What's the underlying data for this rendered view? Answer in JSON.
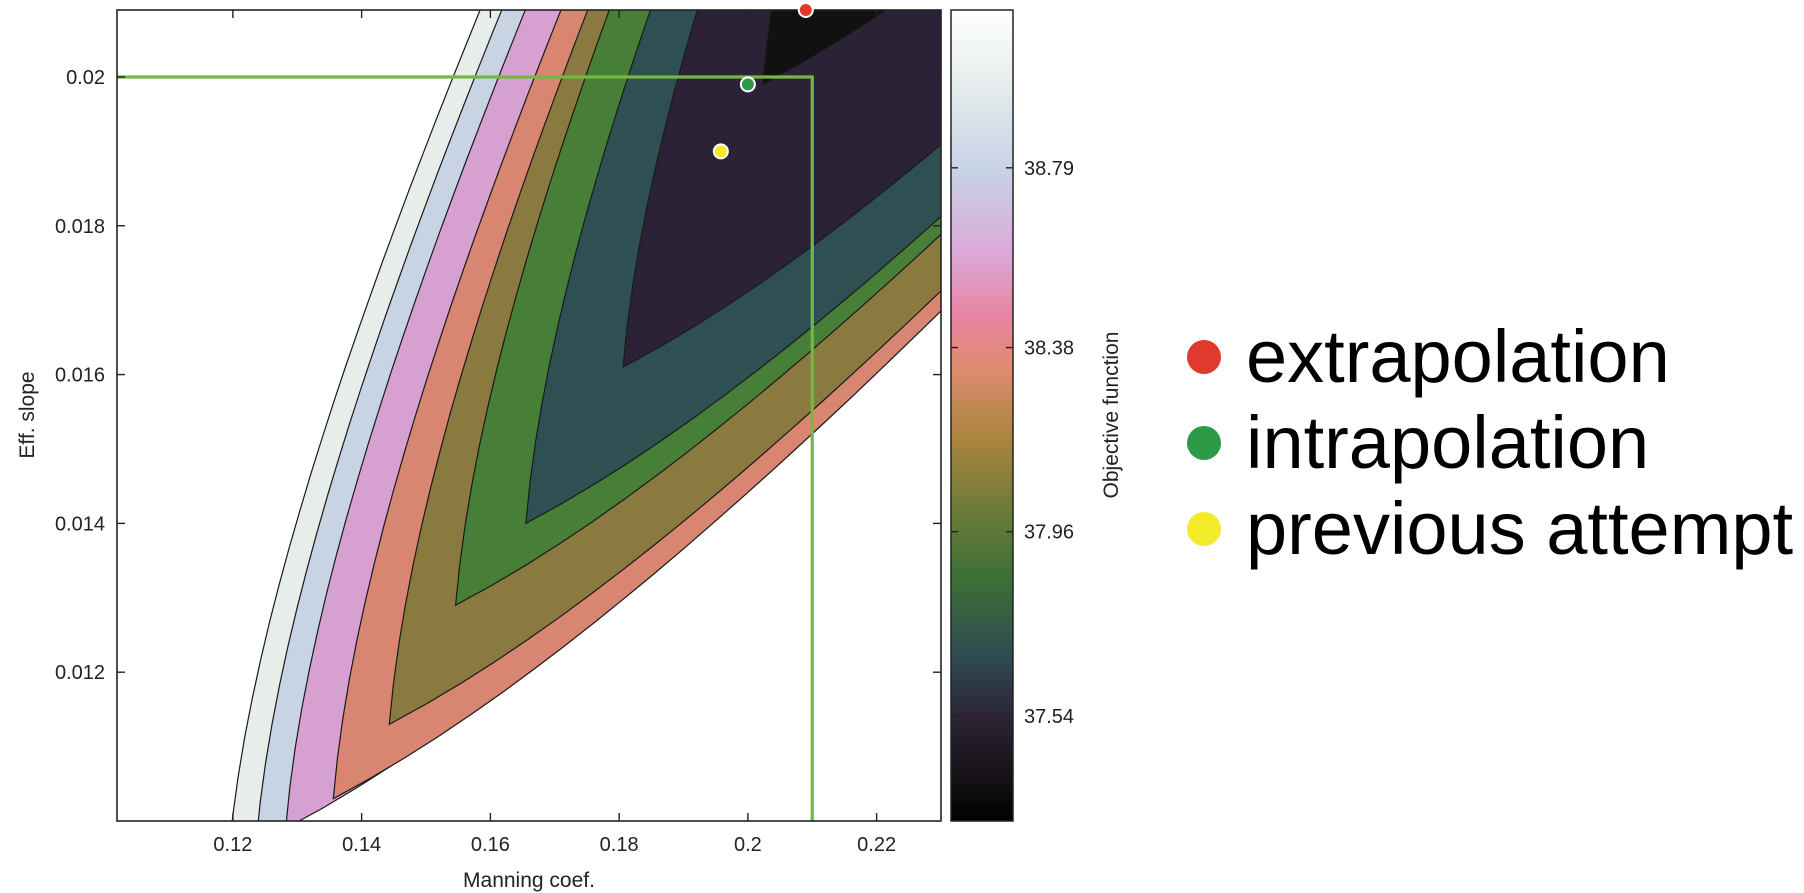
{
  "chart_data": {
    "type": "contour",
    "xlabel": "Manning coef.",
    "ylabel": "Eff. slope",
    "xlim": [
      0.102,
      0.23
    ],
    "ylim": [
      0.01,
      0.0209
    ],
    "xticks": [
      0.12,
      0.14,
      0.16,
      0.18,
      0.2,
      0.22
    ],
    "xtick_labels": [
      "0.12",
      "0.14",
      "0.16",
      "0.18",
      "0.2",
      "0.22"
    ],
    "yticks": [
      0.012,
      0.014,
      0.016,
      0.018,
      0.02
    ],
    "ytick_labels": [
      "0.012",
      "0.014",
      "0.016",
      "0.018",
      "0.02"
    ],
    "colorbar": {
      "label": "Objective function",
      "range": [
        37.3,
        39.15
      ],
      "ticks": [
        37.54,
        37.96,
        38.38,
        38.79
      ],
      "tick_labels": [
        "37.54",
        "37.96",
        "38.38",
        "38.79"
      ]
    },
    "contour_levels": [
      {
        "fill": "#111111",
        "tip": [
          0.2023,
          0.0199
        ]
      },
      {
        "fill": "#2b2238",
        "tip": [
          0.1806,
          0.0161
        ]
      },
      {
        "fill": "#2e5053",
        "tip": [
          0.1655,
          0.014
        ]
      },
      {
        "fill": "#487f38",
        "tip": [
          0.1546,
          0.0129
        ]
      },
      {
        "fill": "#8a7a40",
        "tip": [
          0.1443,
          0.0113
        ]
      },
      {
        "fill": "#d88572",
        "tip": [
          0.1356,
          0.0103
        ]
      },
      {
        "fill": "#d6a0d0",
        "tip": [
          0.1282,
          0.0099
        ]
      },
      {
        "fill": "#c8d4e4",
        "tip": [
          0.1236,
          0.0097
        ]
      },
      {
        "fill": "#e7ede9",
        "tip": [
          0.1193,
          0.0095
        ]
      }
    ],
    "green_bounds": {
      "x": 0.21,
      "y": 0.02,
      "color": "#74b843"
    },
    "points": [
      {
        "name": "extrapolation",
        "x": 0.209,
        "y": 0.0209,
        "color": "#e03a2e"
      },
      {
        "name": "intrapolation",
        "x": 0.2,
        "y": 0.0199,
        "color": "#2d9a48"
      },
      {
        "name": "previous attempt",
        "x": 0.1958,
        "y": 0.019,
        "color": "#f2ea2a"
      }
    ],
    "legend": {
      "placement": "right",
      "entries": [
        {
          "label": "extrapolation",
          "color": "#e03a2e"
        },
        {
          "label": "intrapolation",
          "color": "#2d9a48"
        },
        {
          "label": "previous attempt",
          "color": "#f2ea2a"
        }
      ]
    }
  }
}
